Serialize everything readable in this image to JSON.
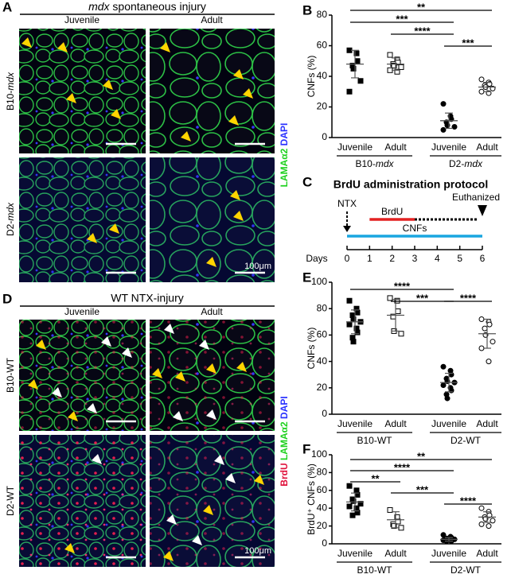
{
  "panels": {
    "A": {
      "letter": "A",
      "title": {
        "italic": "mdx",
        "rest": " spontaneous injury"
      },
      "columns": [
        "Juvenile",
        "Adult"
      ],
      "rows": [
        {
          "prefix": "B10-",
          "italic": "mdx"
        },
        {
          "prefix": "D2-",
          "italic": "mdx"
        }
      ],
      "stain": [
        {
          "text": "LAMAα2",
          "color": "#1fd11f"
        },
        {
          "text": "DAPI",
          "color": "#2a32ff"
        }
      ],
      "scale_bar": "100μm"
    },
    "D": {
      "letter": "D",
      "title": "WT NTX-injury",
      "columns": [
        "Juvenile",
        "Adult"
      ],
      "rows": [
        "B10-WT",
        "D2-WT"
      ],
      "stain": [
        {
          "text": "BrdU",
          "color": "#e0103a"
        },
        {
          "text": "LAMAα2",
          "color": "#1fd11f"
        },
        {
          "text": "DAPI",
          "color": "#2a32ff"
        }
      ],
      "scale_bar": "100μm"
    },
    "C": {
      "letter": "C",
      "title": "BrdU administration protocol",
      "start_label": {
        "text": "NTX",
        "day": 0
      },
      "end_label": {
        "text": "Euthanized",
        "day": 6
      },
      "axis_label": "Days",
      "xlim": [
        0,
        6
      ],
      "xticks": [
        0,
        1,
        2,
        3,
        4,
        5,
        6
      ],
      "segments": [
        {
          "name": "BrdU",
          "start": 1,
          "end": 3,
          "color": "#e32222"
        },
        {
          "name": "CNFs",
          "start": 0,
          "end": 6,
          "color": "#1aa6e0"
        }
      ],
      "dotted": {
        "start": 3,
        "end": 6
      }
    }
  },
  "chart_data": [
    {
      "type": "dot",
      "panel": "B",
      "ylabel": "CNFs (%)",
      "ylim": [
        0,
        80
      ],
      "yticks": [
        0,
        20,
        40,
        60,
        80
      ],
      "categories": [
        "Juvenile",
        "Adult",
        "Juvenile",
        "Adult"
      ],
      "groups": [
        {
          "prefix": "B10-",
          "italic": "mdx"
        },
        {
          "prefix": "D2-",
          "italic": "mdx"
        }
      ],
      "markers": [
        "square",
        "square-open",
        "circle",
        "circle-open"
      ],
      "points": [
        [
          57,
          55,
          50,
          47,
          45,
          37,
          30
        ],
        [
          54,
          51,
          49,
          48,
          47,
          46,
          44,
          43
        ],
        [
          22,
          14,
          12,
          10,
          8,
          7,
          5
        ],
        [
          38,
          36,
          35,
          34,
          33,
          32,
          30,
          29
        ]
      ],
      "mean": [
        48,
        48,
        11,
        33
      ],
      "sd": [
        9,
        4,
        5,
        3
      ],
      "significance": [
        {
          "label": "**",
          "pair": [
            0,
            3
          ]
        },
        {
          "label": "***",
          "pair": [
            0,
            2
          ]
        },
        {
          "label": "****",
          "pair": [
            1,
            2
          ]
        },
        {
          "label": "***",
          "pair": [
            2,
            3
          ]
        }
      ]
    },
    {
      "type": "dot",
      "panel": "E",
      "ylabel": "CNFs (%)",
      "ylim": [
        0,
        100
      ],
      "yticks": [
        0,
        20,
        40,
        60,
        80,
        100
      ],
      "categories": [
        "Juvenile",
        "Adult",
        "Juvenile",
        "Adult"
      ],
      "groups": [
        "B10-WT",
        "D2-WT"
      ],
      "markers": [
        "square",
        "square-open",
        "circle",
        "circle-open"
      ],
      "points": [
        [
          86,
          80,
          77,
          75,
          72,
          70,
          68,
          65,
          62,
          58,
          55
        ],
        [
          88,
          86,
          78,
          74,
          63,
          61
        ],
        [
          36,
          33,
          30,
          27,
          25,
          24,
          22,
          20,
          18,
          15,
          12
        ],
        [
          72,
          70,
          68,
          65,
          60,
          55,
          50,
          40
        ]
      ],
      "mean": [
        70,
        75,
        24,
        61
      ],
      "sd": [
        9,
        12,
        7,
        11
      ],
      "significance": [
        {
          "label": "****",
          "pair": [
            0,
            2
          ]
        },
        {
          "label": "***",
          "pair": [
            1,
            2
          ]
        },
        {
          "label": "****",
          "pair": [
            2,
            3
          ]
        }
      ]
    },
    {
      "type": "dot",
      "panel": "F",
      "ylabel": "BrdU⁺ CNFs (%)",
      "ylim": [
        0,
        100
      ],
      "yticks": [
        0,
        20,
        40,
        60,
        80,
        100
      ],
      "categories": [
        "Juvenile",
        "Adult",
        "Juvenile",
        "Adult"
      ],
      "groups": [
        "B10-WT",
        "D2-WT"
      ],
      "markers": [
        "square",
        "square-open",
        "circle",
        "circle-open"
      ],
      "points": [
        [
          65,
          60,
          55,
          50,
          48,
          45,
          42,
          40,
          35,
          32
        ],
        [
          38,
          30,
          25,
          22,
          20,
          18
        ],
        [
          10,
          8,
          7,
          6,
          5,
          5,
          4,
          4,
          3,
          3
        ],
        [
          40,
          36,
          32,
          30,
          28,
          26,
          22,
          20
        ]
      ],
      "mean": [
        47,
        27,
        5,
        30
      ],
      "sd": [
        10,
        9,
        2,
        6
      ],
      "significance": [
        {
          "label": "**",
          "pair": [
            0,
            3
          ]
        },
        {
          "label": "****",
          "pair": [
            0,
            2
          ]
        },
        {
          "label": "**",
          "pair": [
            0,
            1
          ]
        },
        {
          "label": "***",
          "pair": [
            1,
            2
          ]
        },
        {
          "label": "****",
          "pair": [
            2,
            3
          ]
        }
      ]
    }
  ]
}
